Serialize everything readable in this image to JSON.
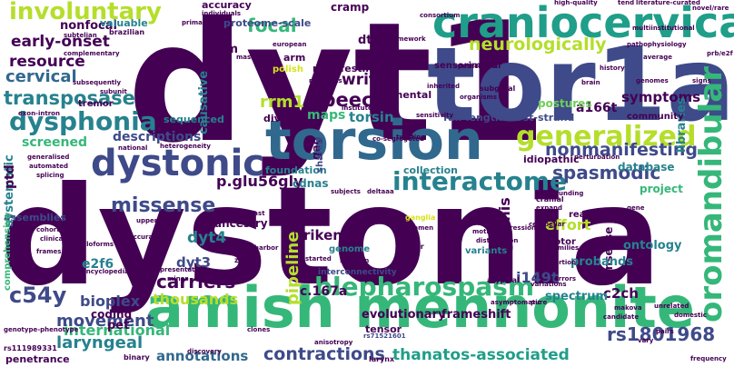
{
  "palette": {
    "dark_purple": "#440154",
    "indigo": "#3e4a89",
    "blue": "#31688e",
    "teal": "#26828e",
    "green_teal": "#1f9e89",
    "green": "#35b779",
    "light_green": "#6ece58",
    "yellow_green": "#b5de2b",
    "yellow": "#d8e219"
  },
  "words": [
    {
      "text": "dystonia"
    },
    {
      "text": "dyt1"
    },
    {
      "text": "tor1a"
    },
    {
      "text": "amish mennonite"
    },
    {
      "text": "torsion"
    },
    {
      "text": "craniocervical"
    },
    {
      "text": "dystonic"
    },
    {
      "text": "blepharospasm"
    },
    {
      "text": "oromandibular"
    },
    {
      "text": "interactome"
    },
    {
      "text": "generalized"
    },
    {
      "text": "dysphonia"
    },
    {
      "text": "involuntary"
    },
    {
      "text": "transposase"
    },
    {
      "text": "rs1801968"
    },
    {
      "text": "c54y"
    },
    {
      "text": "missense"
    },
    {
      "text": "spasmodic"
    },
    {
      "text": "nonmanifesting"
    },
    {
      "text": "contractions"
    },
    {
      "text": "thanatos-associated"
    },
    {
      "text": "laryngeal"
    },
    {
      "text": "international"
    },
    {
      "text": "movement"
    },
    {
      "text": "carriers"
    },
    {
      "text": "neurologically"
    },
    {
      "text": "speech"
    },
    {
      "text": "writer"
    },
    {
      "text": "cervical"
    },
    {
      "text": "resource"
    },
    {
      "text": "early-onset"
    },
    {
      "text": "nonfocal"
    },
    {
      "text": "focal"
    },
    {
      "text": "p.glu56gly"
    },
    {
      "text": "bioplex"
    },
    {
      "text": "thousands"
    },
    {
      "text": "annotations"
    },
    {
      "text": "pipeline"
    },
    {
      "text": "i149t"
    },
    {
      "text": "c2ch"
    },
    {
      "text": "effort"
    },
    {
      "text": "arg13his"
    },
    {
      "text": "symptoms"
    },
    {
      "text": "a166t"
    },
    {
      "text": "riken"
    },
    {
      "text": "dyt4"
    },
    {
      "text": "dyt3"
    },
    {
      "text": "e2f6"
    },
    {
      "text": "rrm1"
    },
    {
      "text": "causative"
    },
    {
      "text": "hbm"
    },
    {
      "text": "proteome-scale"
    },
    {
      "text": "systematic"
    },
    {
      "text": "ptd"
    },
    {
      "text": "screened"
    },
    {
      "text": "descriptions"
    },
    {
      "text": "maps"
    },
    {
      "text": "torsin"
    },
    {
      "text": "full-length"
    },
    {
      "text": "first-strand"
    },
    {
      "text": "postures"
    },
    {
      "text": "c.167a"
    },
    {
      "text": "nonsense"
    },
    {
      "text": "probands"
    },
    {
      "text": "ontology"
    },
    {
      "text": "ancestry"
    },
    {
      "text": "database"
    },
    {
      "text": "libraries"
    },
    {
      "text": "project"
    },
    {
      "text": "spectrum"
    },
    {
      "text": "evolutionary"
    },
    {
      "text": "frameshift"
    },
    {
      "text": "coding"
    },
    {
      "text": "pet"
    },
    {
      "text": "penetrance"
    },
    {
      "text": "tensor"
    },
    {
      "text": "rs71521601"
    },
    {
      "text": "genome"
    },
    {
      "text": "interconnectivity"
    },
    {
      "text": "motor"
    },
    {
      "text": "variants"
    },
    {
      "text": "foundation"
    },
    {
      "text": "collection"
    },
    {
      "text": "cdnas"
    },
    {
      "text": "diverse"
    },
    {
      "text": "segmental"
    },
    {
      "text": "sequenced"
    },
    {
      "text": "assemblies"
    },
    {
      "text": "disorder"
    },
    {
      "text": "comprehensive"
    },
    {
      "text": "gag"
    },
    {
      "text": "shared"
    },
    {
      "text": "idiopathic"
    },
    {
      "text": "reading"
    },
    {
      "text": "community"
    },
    {
      "text": "sensorimotor"
    },
    {
      "text": "manifesting"
    },
    {
      "text": "dti"
    },
    {
      "text": "mgc"
    },
    {
      "text": "cramp"
    },
    {
      "text": "accuracy"
    },
    {
      "text": "valuable"
    },
    {
      "text": "brazilian"
    },
    {
      "text": "arm"
    },
    {
      "text": "polish"
    },
    {
      "text": "tremor"
    },
    {
      "text": "rs111989331"
    },
    {
      "text": "genotype-phenotype"
    },
    {
      "text": "binary"
    },
    {
      "text": "larynx"
    },
    {
      "text": "anisotropy"
    },
    {
      "text": "clones"
    },
    {
      "text": "zinc"
    },
    {
      "text": "presentation"
    },
    {
      "text": "shotgun"
    },
    {
      "text": "finger"
    },
    {
      "text": "putamen"
    },
    {
      "text": "ganglia"
    },
    {
      "text": "cranial"
    },
    {
      "text": "expand"
    },
    {
      "text": "cerebellar"
    },
    {
      "text": "proportion"
    },
    {
      "text": "atypical"
    },
    {
      "text": "makova"
    },
    {
      "text": "candidate"
    },
    {
      "text": "unrelated"
    },
    {
      "text": "domestic"
    },
    {
      "text": "pairs"
    },
    {
      "text": "vary"
    },
    {
      "text": "frequency"
    },
    {
      "text": "subgyral"
    },
    {
      "text": "pathogenic"
    },
    {
      "text": "organisms"
    },
    {
      "text": "history"
    },
    {
      "text": "average"
    },
    {
      "text": "signs"
    },
    {
      "text": "novel/rare"
    },
    {
      "text": "prb/e2f"
    },
    {
      "text": "tend"
    },
    {
      "text": "literature-curated"
    },
    {
      "text": "high-quality"
    },
    {
      "text": "multiinstitutional"
    },
    {
      "text": "pathophysiology"
    },
    {
      "text": "framework"
    },
    {
      "text": "consortium"
    },
    {
      "text": "individuals"
    },
    {
      "text": "primary"
    },
    {
      "text": "european"
    },
    {
      "text": "networks"
    },
    {
      "text": "institutes"
    },
    {
      "text": "harbor"
    },
    {
      "text": "discovery"
    },
    {
      "text": "minor"
    },
    {
      "text": "encyclopedia"
    },
    {
      "text": "alloforms"
    },
    {
      "text": "frames"
    },
    {
      "text": "cohort"
    },
    {
      "text": "clinically"
    },
    {
      "text": "accurate"
    },
    {
      "text": "upper"
    },
    {
      "text": "risk"
    },
    {
      "text": "heterogeneity"
    },
    {
      "text": "national"
    },
    {
      "text": "splicing"
    },
    {
      "text": "generalised"
    },
    {
      "text": "automated"
    },
    {
      "text": "exon-intron"
    },
    {
      "text": "mutations"
    },
    {
      "text": "complementary"
    },
    {
      "text": "subsequently"
    },
    {
      "text": "subtelian"
    },
    {
      "text": "yeast"
    },
    {
      "text": "deltaaa"
    },
    {
      "text": "subjects"
    },
    {
      "text": "funding"
    },
    {
      "text": "perturbation"
    },
    {
      "text": "twisting"
    },
    {
      "text": "inherited"
    },
    {
      "text": "motif"
    },
    {
      "text": "families"
    },
    {
      "text": "errors"
    },
    {
      "text": "asymptomatic"
    },
    {
      "text": "pure"
    },
    {
      "text": "started"
    },
    {
      "text": "distribution"
    },
    {
      "text": "regression"
    },
    {
      "text": "variations"
    },
    {
      "text": "co-segregated"
    },
    {
      "text": "mask"
    },
    {
      "text": "sensitivity"
    },
    {
      "text": "genomes"
    },
    {
      "text": "brain"
    },
    {
      "text": "gene"
    },
    {
      "text": "subunit"
    }
  ]
}
